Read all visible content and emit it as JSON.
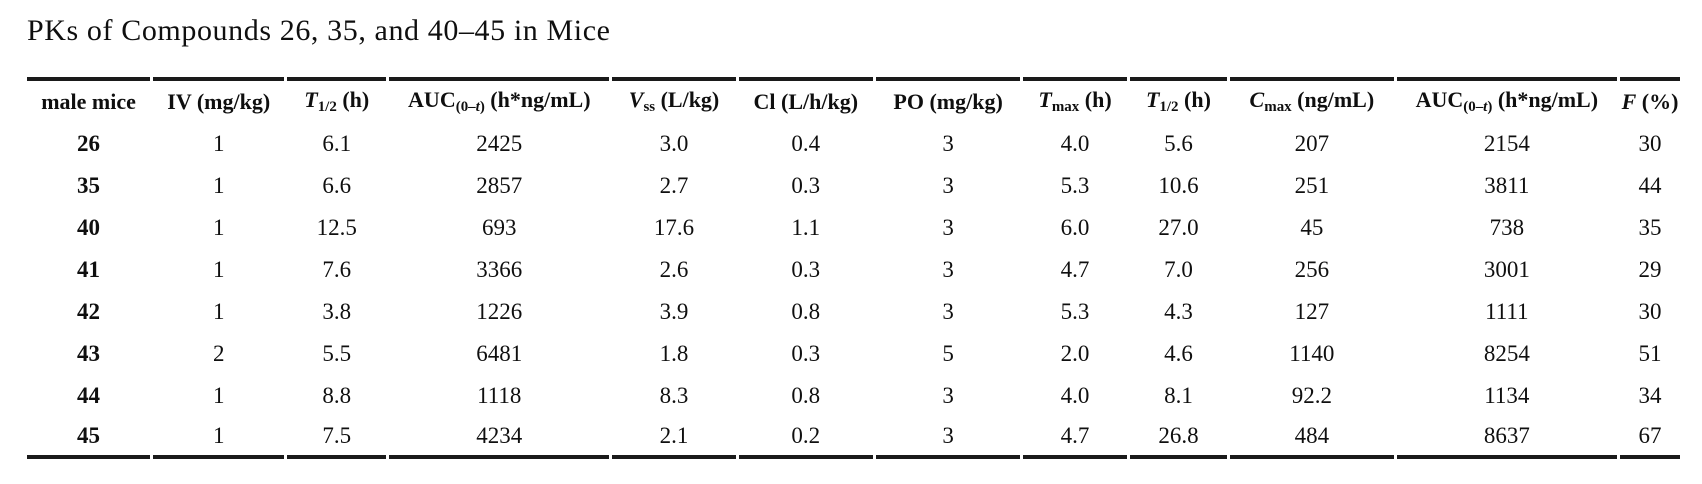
{
  "title": "PKs of Compounds 26, 35, and 40–45 in Mice",
  "colors": {
    "background": "#ffffff",
    "text": "#0f0f0f",
    "rule": "#1a1a1a"
  },
  "table": {
    "columns": [
      {
        "name": "male-mice",
        "width": 7.6,
        "parts": [
          {
            "t": "male mice",
            "s": "n"
          }
        ]
      },
      {
        "name": "iv-dose",
        "width": 8.1,
        "parts": [
          {
            "t": "IV (mg/kg)",
            "s": "n"
          }
        ]
      },
      {
        "name": "iv-t-half",
        "width": 6.1,
        "parts": [
          {
            "t": "T",
            "s": "i"
          },
          {
            "t": "1/2",
            "s": "sub"
          },
          {
            "t": " (h)",
            "s": "n"
          }
        ]
      },
      {
        "name": "iv-auc",
        "width": 13.6,
        "parts": [
          {
            "t": "AUC",
            "s": "n"
          },
          {
            "t": "(0–",
            "s": "sub"
          },
          {
            "t": "t",
            "s": "subi"
          },
          {
            "t": ")",
            "s": "sub"
          },
          {
            "t": " (h*ng/mL)",
            "s": "n"
          }
        ]
      },
      {
        "name": "vss",
        "width": 7.6,
        "parts": [
          {
            "t": "V",
            "s": "i"
          },
          {
            "t": "ss",
            "s": "sub"
          },
          {
            "t": " (L/kg)",
            "s": "n"
          }
        ]
      },
      {
        "name": "cl",
        "width": 8.3,
        "parts": [
          {
            "t": "Cl (L/h/kg)",
            "s": "n"
          }
        ]
      },
      {
        "name": "po-dose",
        "width": 8.9,
        "parts": [
          {
            "t": "PO (mg/kg)",
            "s": "n"
          }
        ]
      },
      {
        "name": "tmax",
        "width": 6.4,
        "parts": [
          {
            "t": "T",
            "s": "i"
          },
          {
            "t": "max",
            "s": "sub"
          },
          {
            "t": " (h)",
            "s": "n"
          }
        ]
      },
      {
        "name": "po-t-half",
        "width": 6.0,
        "parts": [
          {
            "t": "T",
            "s": "i"
          },
          {
            "t": "1/2",
            "s": "sub"
          },
          {
            "t": " (h)",
            "s": "n"
          }
        ]
      },
      {
        "name": "cmax",
        "width": 10.1,
        "parts": [
          {
            "t": "C",
            "s": "i"
          },
          {
            "t": "max",
            "s": "sub"
          },
          {
            "t": " (ng/mL)",
            "s": "n"
          }
        ]
      },
      {
        "name": "po-auc",
        "width": 13.6,
        "parts": [
          {
            "t": "AUC",
            "s": "n"
          },
          {
            "t": "(0–",
            "s": "sub"
          },
          {
            "t": "t",
            "s": "subi"
          },
          {
            "t": ")",
            "s": "sub"
          },
          {
            "t": " (h*ng/mL)",
            "s": "n"
          }
        ]
      },
      {
        "name": "f-percent",
        "width": 3.7,
        "parts": [
          {
            "t": "F",
            "s": "i"
          },
          {
            "t": " (%)",
            "s": "n"
          }
        ]
      }
    ],
    "rows": [
      [
        "26",
        "1",
        "6.1",
        "2425",
        "3.0",
        "0.4",
        "3",
        "4.0",
        "5.6",
        "207",
        "2154",
        "30"
      ],
      [
        "35",
        "1",
        "6.6",
        "2857",
        "2.7",
        "0.3",
        "3",
        "5.3",
        "10.6",
        "251",
        "3811",
        "44"
      ],
      [
        "40",
        "1",
        "12.5",
        "693",
        "17.6",
        "1.1",
        "3",
        "6.0",
        "27.0",
        "45",
        "738",
        "35"
      ],
      [
        "41",
        "1",
        "7.6",
        "3366",
        "2.6",
        "0.3",
        "3",
        "4.7",
        "7.0",
        "256",
        "3001",
        "29"
      ],
      [
        "42",
        "1",
        "3.8",
        "1226",
        "3.9",
        "0.8",
        "3",
        "5.3",
        "4.3",
        "127",
        "1111",
        "30"
      ],
      [
        "43",
        "2",
        "5.5",
        "6481",
        "1.8",
        "0.3",
        "5",
        "2.0",
        "4.6",
        "1140",
        "8254",
        "51"
      ],
      [
        "44",
        "1",
        "8.8",
        "1118",
        "8.3",
        "0.8",
        "3",
        "4.0",
        "8.1",
        "92.2",
        "1134",
        "34"
      ],
      [
        "45",
        "1",
        "7.5",
        "4234",
        "2.1",
        "0.2",
        "3",
        "4.7",
        "26.8",
        "484",
        "8637",
        "67"
      ]
    ]
  }
}
